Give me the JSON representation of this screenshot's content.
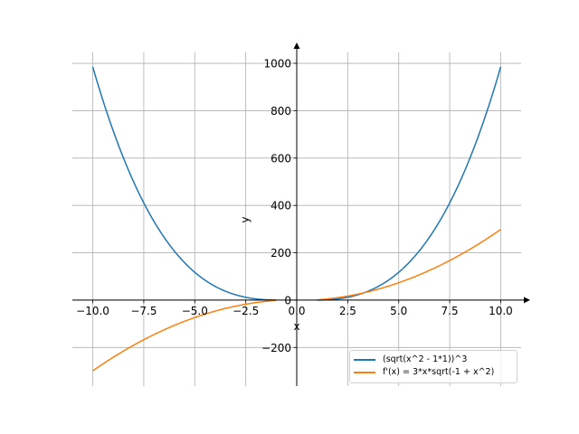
{
  "chart_data": {
    "type": "line",
    "title": "",
    "xlabel": "x",
    "ylabel": "y",
    "xlim": [
      -11,
      11
    ],
    "ylim": [
      -363,
      1046
    ],
    "grid": true,
    "xticks": [
      -10,
      -7.5,
      -5,
      -2.5,
      0,
      2.5,
      5,
      7.5,
      10
    ],
    "xtick_labels": [
      "−10.0",
      "−7.5",
      "−5.0",
      "−2.5",
      "0.0",
      "2.5",
      "5.0",
      "7.5",
      "10.0"
    ],
    "yticks": [
      -200,
      0,
      200,
      400,
      600,
      800,
      1000
    ],
    "ytick_labels": [
      "−200",
      "0",
      "200",
      "400",
      "600",
      "800",
      "1000"
    ],
    "legend_position": "lower-right",
    "series": [
      {
        "name": "(sqrt(x^2 - 1*1))^3",
        "color": "#1f77b4",
        "expression": "(x^2-1)^1.5",
        "domain": [
          [
            -10,
            -1
          ],
          [
            1,
            10
          ]
        ],
        "sample_values": {
          "x": [
            -10,
            -5,
            -1,
            1,
            5,
            10
          ],
          "y": [
            985.0,
            117.6,
            0,
            0,
            117.6,
            985.0
          ]
        }
      },
      {
        "name": "f'(x) = 3*x*sqrt(-1 + x^2)",
        "color": "#ff7f0e",
        "expression": "3*x*sqrt(x^2-1)",
        "domain": [
          [
            -10,
            -1
          ],
          [
            1,
            10
          ]
        ],
        "sample_values": {
          "x": [
            -10,
            -5,
            -1,
            1,
            5,
            10
          ],
          "y": [
            -298.5,
            -73.5,
            0,
            0,
            73.5,
            298.5
          ]
        }
      }
    ]
  }
}
